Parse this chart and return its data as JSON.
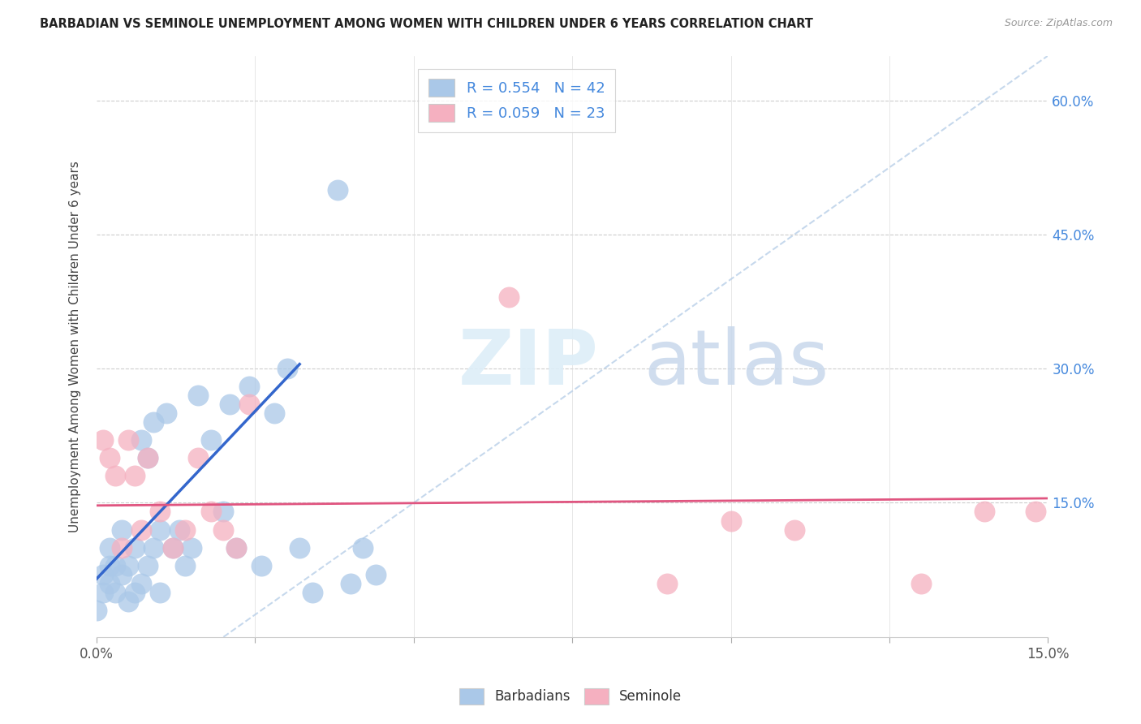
{
  "title": "BARBADIAN VS SEMINOLE UNEMPLOYMENT AMONG WOMEN WITH CHILDREN UNDER 6 YEARS CORRELATION CHART",
  "source": "Source: ZipAtlas.com",
  "ylabel": "Unemployment Among Women with Children Under 6 years",
  "xlim": [
    0.0,
    0.15
  ],
  "ylim": [
    0.0,
    0.65
  ],
  "xtick_positions": [
    0.0,
    0.025,
    0.05,
    0.075,
    0.1,
    0.125,
    0.15
  ],
  "ytick_positions": [
    0.15,
    0.3,
    0.45,
    0.6
  ],
  "barbadian_color": "#aac8e8",
  "barbadian_line_color": "#3366cc",
  "seminole_color": "#f5b0c0",
  "seminole_line_color": "#e05580",
  "diag_line_color": "#b8cfe8",
  "R_barbadian": 0.554,
  "N_barbadian": 42,
  "R_seminole": 0.059,
  "N_seminole": 23,
  "barbadian_x": [
    0.0,
    0.001,
    0.001,
    0.002,
    0.002,
    0.002,
    0.003,
    0.003,
    0.004,
    0.004,
    0.005,
    0.005,
    0.006,
    0.006,
    0.007,
    0.007,
    0.008,
    0.008,
    0.009,
    0.009,
    0.01,
    0.01,
    0.011,
    0.012,
    0.013,
    0.014,
    0.015,
    0.016,
    0.018,
    0.02,
    0.021,
    0.022,
    0.024,
    0.026,
    0.028,
    0.03,
    0.032,
    0.034,
    0.038,
    0.04,
    0.042,
    0.044
  ],
  "barbadian_y": [
    0.03,
    0.05,
    0.07,
    0.06,
    0.08,
    0.1,
    0.05,
    0.08,
    0.07,
    0.12,
    0.04,
    0.08,
    0.05,
    0.1,
    0.06,
    0.22,
    0.08,
    0.2,
    0.1,
    0.24,
    0.05,
    0.12,
    0.25,
    0.1,
    0.12,
    0.08,
    0.1,
    0.27,
    0.22,
    0.14,
    0.26,
    0.1,
    0.28,
    0.08,
    0.25,
    0.3,
    0.1,
    0.05,
    0.5,
    0.06,
    0.1,
    0.07
  ],
  "seminole_x": [
    0.001,
    0.002,
    0.003,
    0.004,
    0.005,
    0.006,
    0.007,
    0.008,
    0.01,
    0.012,
    0.014,
    0.016,
    0.018,
    0.02,
    0.022,
    0.024,
    0.065,
    0.09,
    0.1,
    0.11,
    0.13,
    0.14,
    0.148
  ],
  "seminole_y": [
    0.22,
    0.2,
    0.18,
    0.1,
    0.22,
    0.18,
    0.12,
    0.2,
    0.14,
    0.1,
    0.12,
    0.2,
    0.14,
    0.12,
    0.1,
    0.26,
    0.38,
    0.06,
    0.13,
    0.12,
    0.06,
    0.14,
    0.14
  ],
  "barb_line_x0": 0.0,
  "barb_line_y0": 0.065,
  "barb_line_x1": 0.032,
  "barb_line_y1": 0.305,
  "sem_line_x0": 0.0,
  "sem_line_y0": 0.147,
  "sem_line_x1": 0.15,
  "sem_line_y1": 0.155
}
